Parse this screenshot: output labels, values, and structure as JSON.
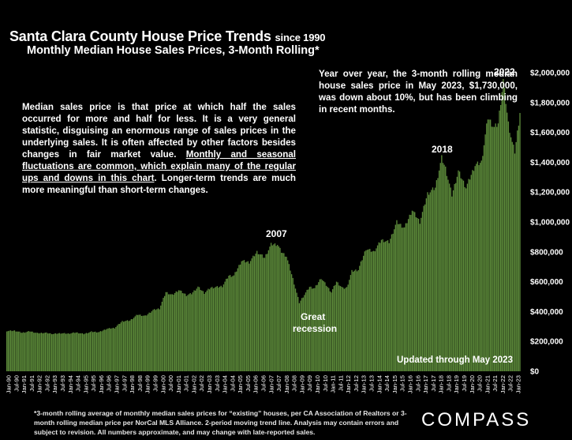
{
  "chart_data": {
    "type": "bar",
    "title": "Santa Clara County House Price Trends",
    "title_suffix": "since 1990",
    "subtitle": "Monthly Median House Sales Prices, 3-Month Rolling*",
    "ylim": [
      0,
      2000000
    ],
    "y_ticks": [
      "$0",
      "$200,000",
      "$400,000",
      "$600,000",
      "$800,000",
      "$1,000,000",
      "$1,200,000",
      "$1,400,000",
      "$1,600,000",
      "$1,800,000",
      "$2,000,000"
    ],
    "x_ticks": [
      "Jan-90",
      "Jul-90",
      "Jan-91",
      "Jul-91",
      "Jan-92",
      "Jul-92",
      "Jan-93",
      "Jul-93",
      "Jan-94",
      "Jul-94",
      "Jan-95",
      "Jul-95",
      "Jan-96",
      "Jul-96",
      "Jan-97",
      "Jul-97",
      "Jan-98",
      "Jul-98",
      "Jan-99",
      "Jul-99",
      "Jan-00",
      "Jul-00",
      "Jan-01",
      "Jul-01",
      "Jan-02",
      "Jul-02",
      "Jan-03",
      "Jul-03",
      "Jan-04",
      "Jul-04",
      "Jan-05",
      "Jul-05",
      "Jan-06",
      "Jul-06",
      "Jan-07",
      "Jul-07",
      "Jan-08",
      "Jul-08",
      "Jan-09",
      "Jul-09",
      "Jan-10",
      "Jul-10",
      "Jan-11",
      "Jul-11",
      "Jan-12",
      "Jul-12",
      "Jan-13",
      "Jul-13",
      "Jan-14",
      "Jul-14",
      "Jan-15",
      "Jul-15",
      "Jan-16",
      "Jul-16",
      "Jan-17",
      "Jul-17",
      "Jan-18",
      "Jul-18",
      "Jan-19",
      "Jul-19",
      "Jan-20",
      "Jul-20",
      "Jan-21",
      "Jul-21",
      "Jan-22",
      "Jul-22",
      "Jan-23"
    ],
    "anchors": [
      [
        "1990-01",
        270000
      ],
      [
        "1990-07",
        272000
      ],
      [
        "1991-01",
        258000
      ],
      [
        "1991-07",
        268000
      ],
      [
        "1992-01",
        255000
      ],
      [
        "1992-07",
        258000
      ],
      [
        "1993-01",
        250000
      ],
      [
        "1993-07",
        255000
      ],
      [
        "1994-01",
        252000
      ],
      [
        "1994-07",
        260000
      ],
      [
        "1995-01",
        250000
      ],
      [
        "1995-07",
        265000
      ],
      [
        "1996-01",
        262000
      ],
      [
        "1996-07",
        285000
      ],
      [
        "1997-01",
        290000
      ],
      [
        "1997-07",
        335000
      ],
      [
        "1998-01",
        340000
      ],
      [
        "1998-07",
        380000
      ],
      [
        "1999-01",
        370000
      ],
      [
        "1999-07",
        410000
      ],
      [
        "1999-12",
        420000
      ],
      [
        "2000-05",
        530000
      ],
      [
        "2000-10",
        510000
      ],
      [
        "2001-03",
        545000
      ],
      [
        "2001-09",
        510000
      ],
      [
        "2002-01",
        520000
      ],
      [
        "2002-06",
        565000
      ],
      [
        "2002-11",
        525000
      ],
      [
        "2003-04",
        560000
      ],
      [
        "2003-10",
        565000
      ],
      [
        "2004-01",
        570000
      ],
      [
        "2004-06",
        640000
      ],
      [
        "2004-10",
        640000
      ],
      [
        "2005-04",
        740000
      ],
      [
        "2005-10",
        730000
      ],
      [
        "2006-04",
        800000
      ],
      [
        "2006-10",
        760000
      ],
      [
        "2007-03",
        850000
      ],
      [
        "2007-08",
        850000
      ],
      [
        "2007-11",
        800000
      ],
      [
        "2008-03",
        770000
      ],
      [
        "2008-08",
        620000
      ],
      [
        "2009-01",
        460000
      ],
      [
        "2009-04",
        500000
      ],
      [
        "2009-09",
        565000
      ],
      [
        "2010-01",
        555000
      ],
      [
        "2010-06",
        625000
      ],
      [
        "2010-11",
        565000
      ],
      [
        "2011-02",
        530000
      ],
      [
        "2011-06",
        600000
      ],
      [
        "2011-11",
        555000
      ],
      [
        "2012-02",
        560000
      ],
      [
        "2012-06",
        670000
      ],
      [
        "2012-11",
        680000
      ],
      [
        "2013-05",
        820000
      ],
      [
        "2013-11",
        800000
      ],
      [
        "2014-05",
        880000
      ],
      [
        "2014-11",
        865000
      ],
      [
        "2015-05",
        1000000
      ],
      [
        "2015-11",
        960000
      ],
      [
        "2016-05",
        1080000
      ],
      [
        "2016-11",
        1000000
      ],
      [
        "2017-05",
        1190000
      ],
      [
        "2017-11",
        1230000
      ],
      [
        "2018-04",
        1430000
      ],
      [
        "2018-07",
        1360000
      ],
      [
        "2018-12",
        1180000
      ],
      [
        "2019-05",
        1340000
      ],
      [
        "2019-11",
        1230000
      ],
      [
        "2020-06",
        1380000
      ],
      [
        "2020-11",
        1400000
      ],
      [
        "2021-04",
        1700000
      ],
      [
        "2021-09",
        1630000
      ],
      [
        "2021-12",
        1660000
      ],
      [
        "2022-04",
        1950000
      ],
      [
        "2022-08",
        1660000
      ],
      [
        "2022-11",
        1530000
      ],
      [
        "2023-01",
        1470000
      ],
      [
        "2023-05",
        1730000
      ]
    ],
    "bar_color": "#5c8a3a",
    "annotations": {
      "peak_2007": "2007",
      "recession_1": "Great",
      "recession_2": "recession",
      "peak_2018": "2018",
      "peak_2022": "2022"
    }
  },
  "left_note": {
    "part1": "Median sales price is that price at which half the sales occurred for more and half for less. It is a very general statistic, disguising an enormous range of sales prices in the underlying sales. It is often affected by other factors besides changes in fair market value. ",
    "underlined": "Monthly and seasonal fluctuations are common, which explain many of the regular ups and downs in this chart",
    "part2": ". Longer-term trends are much more meaningful than short-term changes."
  },
  "right_note": "Year over year, the 3-month rolling median house sales price in May 2023, $1,730,000, was down about 10%, but has been climbing in recent months.",
  "updated": "Updated through May 2023",
  "footnote": "*3-month rolling average of monthly median sales prices for “existing” houses, per CA Association of Realtors or 3-month rolling median price per NorCal MLS Alliance. 2-period moving trend line. Analysis may contain errors and subject to revision. All numbers approximate, and may change with late-reported sales.",
  "logo": "COMPASS"
}
